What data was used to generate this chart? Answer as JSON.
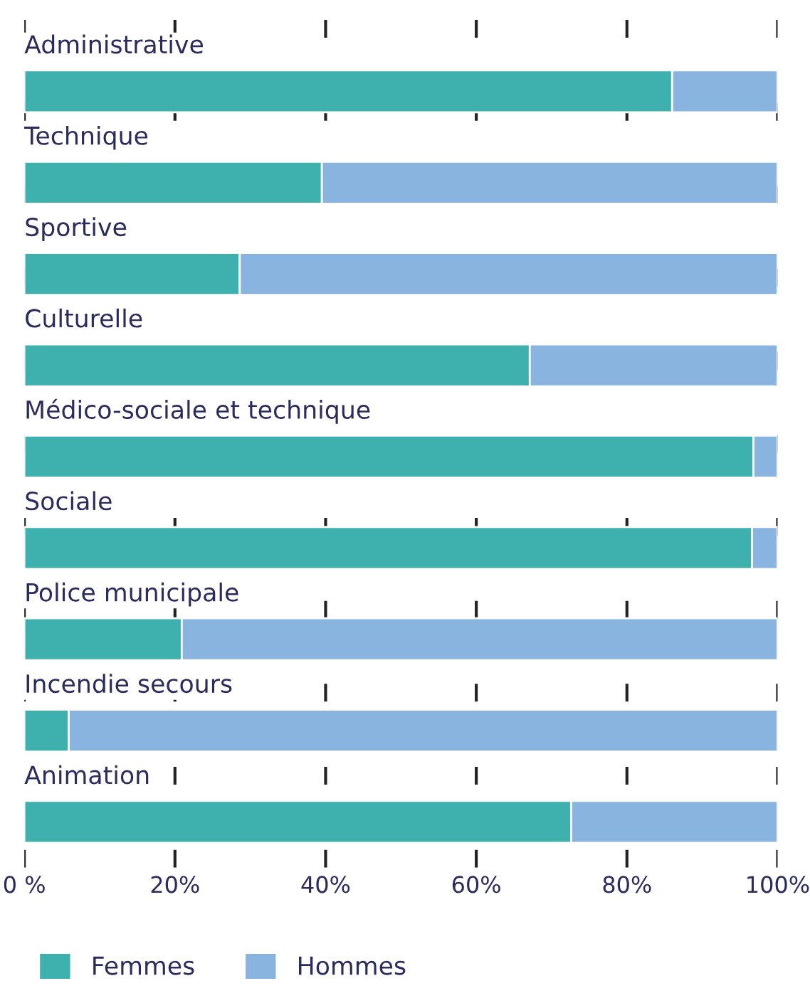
{
  "chart_data": {
    "type": "bar",
    "orientation": "horizontal",
    "stacked": true,
    "categories": [
      "Administrative",
      "Technique",
      "Sportive",
      "Culturelle",
      "Médico-sociale et technique",
      "Sociale",
      "Police municipale",
      "Incendie secours",
      "Animation"
    ],
    "series": [
      {
        "name": "Femmes",
        "color": "#3eb0ae",
        "values": [
          86,
          39.5,
          28.6,
          67.1,
          96.8,
          96.6,
          20.9,
          5.9,
          72.6
        ]
      },
      {
        "name": "Hommes",
        "color": "#89b4e0",
        "values": [
          14,
          60.5,
          71.4,
          32.9,
          3.2,
          3.4,
          79.1,
          94.1,
          27.4
        ]
      }
    ],
    "xlim": [
      0,
      100
    ],
    "xticks": [
      {
        "value": 0,
        "label": "0 %"
      },
      {
        "value": 20,
        "label": "20%"
      },
      {
        "value": 40,
        "label": "40%"
      },
      {
        "value": 60,
        "label": "60%"
      },
      {
        "value": 80,
        "label": "80%"
      },
      {
        "value": 100,
        "label": "100%"
      }
    ],
    "grid": "x",
    "legend": "bottom left"
  }
}
